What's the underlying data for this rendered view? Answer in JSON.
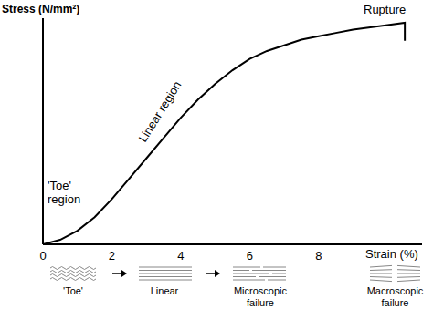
{
  "chart_data": {
    "type": "line",
    "xlabel": "Strain (%)",
    "ylabel": "Stress (N/mm²)",
    "x": [
      0,
      0.5,
      1,
      1.5,
      2,
      2.5,
      3,
      3.5,
      4,
      4.5,
      5,
      5.5,
      6,
      6.5,
      7,
      7.5,
      8,
      8.5,
      9,
      9.5,
      10,
      10.5,
      10.5
    ],
    "values": [
      0,
      2,
      6,
      12,
      20,
      29,
      38,
      47,
      56,
      64,
      71,
      77,
      82,
      85.5,
      88,
      90.5,
      92,
      93.5,
      95,
      96,
      97,
      98,
      90
    ],
    "color": "#000000",
    "xlim": [
      0,
      11
    ],
    "xticks": [
      0,
      2,
      4,
      6,
      8
    ],
    "ylim": [
      0,
      100
    ],
    "tick_labels": "x",
    "grid": false,
    "annotations": [
      "'Toe' region",
      "Linear region",
      "Rupture"
    ]
  },
  "diagram": {
    "stages": [
      "'Toe'",
      "Linear",
      "Microscopic failure",
      "Macroscopic failure"
    ]
  }
}
